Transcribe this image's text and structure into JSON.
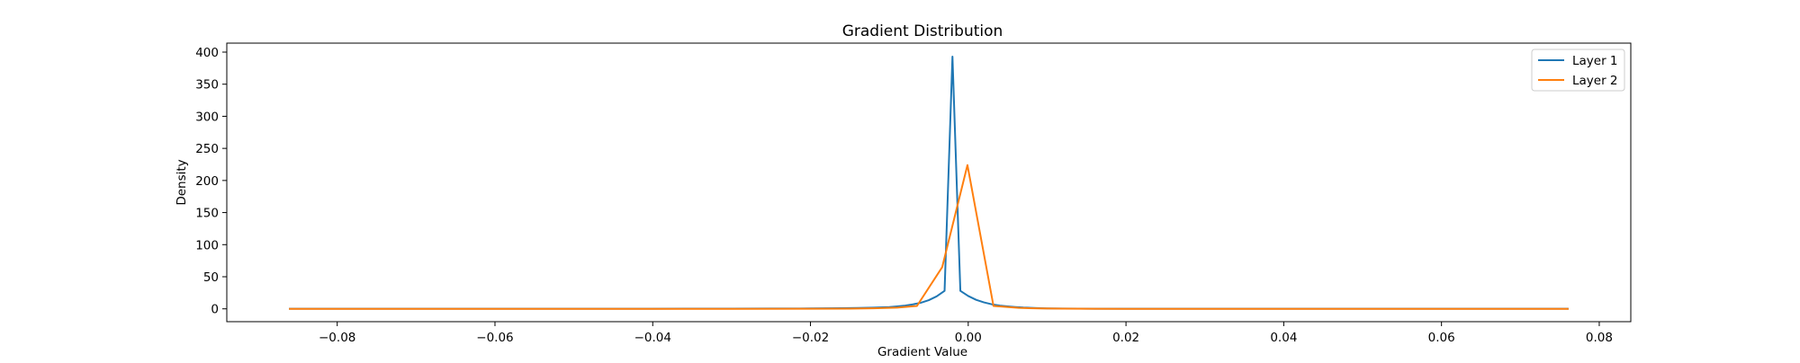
{
  "chart_data": {
    "type": "line",
    "title": "Gradient Distribution",
    "xlabel": "Gradient Value",
    "ylabel": "Density",
    "xlim": [
      -0.094,
      0.084
    ],
    "ylim": [
      -20,
      414
    ],
    "xticks": [
      -0.08,
      -0.06,
      -0.04,
      -0.02,
      0.0,
      0.02,
      0.04,
      0.06,
      0.08
    ],
    "xtick_labels": [
      "−0.08",
      "−0.06",
      "−0.04",
      "−0.02",
      "0.00",
      "0.02",
      "0.04",
      "0.06",
      "0.08"
    ],
    "yticks": [
      0,
      50,
      100,
      150,
      200,
      250,
      300,
      350,
      400
    ],
    "ytick_labels": [
      "0",
      "50",
      "100",
      "150",
      "200",
      "250",
      "300",
      "350",
      "400"
    ],
    "grid": false,
    "legend": "top-right",
    "series": [
      {
        "name": "Layer 1",
        "color": "#1f77b4",
        "x": [
          -0.086,
          -0.08,
          -0.07,
          -0.06,
          -0.05,
          -0.04,
          -0.03,
          -0.025,
          -0.02,
          -0.016,
          -0.014,
          -0.012,
          -0.01,
          -0.009,
          -0.008,
          -0.007,
          -0.006,
          -0.005,
          -0.004,
          -0.003,
          -0.002,
          -0.001,
          0.0,
          0.001,
          0.002,
          0.003,
          0.004,
          0.005,
          0.006,
          0.007,
          0.008,
          0.009,
          0.01,
          0.012,
          0.014,
          0.016,
          0.02,
          0.025,
          0.03,
          0.04,
          0.05,
          0.06,
          0.07,
          0.076
        ],
        "y": [
          0.1,
          0.1,
          0.1,
          0.1,
          0.2,
          0.2,
          0.3,
          0.4,
          0.6,
          1.0,
          1.3,
          1.8,
          2.8,
          3.8,
          5.0,
          7.0,
          9.5,
          13.5,
          19.5,
          28.0,
          393.0,
          28.0,
          20.0,
          14.0,
          10.0,
          7.0,
          5.0,
          3.8,
          2.8,
          2.0,
          1.5,
          1.0,
          0.7,
          0.4,
          0.3,
          0.2,
          0.1,
          0.1,
          0.1,
          0.1,
          0.1,
          0.1,
          0.1,
          0.1
        ]
      },
      {
        "name": "Layer 2",
        "color": "#ff7f0e",
        "x": [
          -0.086,
          -0.08,
          -0.07,
          -0.06,
          -0.05,
          -0.04,
          -0.03,
          -0.02,
          -0.015,
          -0.012,
          -0.009,
          -0.0065,
          -0.0033,
          -0.0001,
          0.0032,
          0.0064,
          0.009,
          0.012,
          0.015,
          0.02,
          0.03,
          0.04,
          0.05,
          0.06,
          0.07,
          0.076
        ],
        "y": [
          0.0,
          0.0,
          0.0,
          0.0,
          0.0,
          0.0,
          0.0,
          0.1,
          0.3,
          0.8,
          1.8,
          4.5,
          65.0,
          224.0,
          4.5,
          1.5,
          0.6,
          0.3,
          0.1,
          0.0,
          0.0,
          0.0,
          0.0,
          0.0,
          0.0,
          0.0
        ]
      }
    ]
  }
}
